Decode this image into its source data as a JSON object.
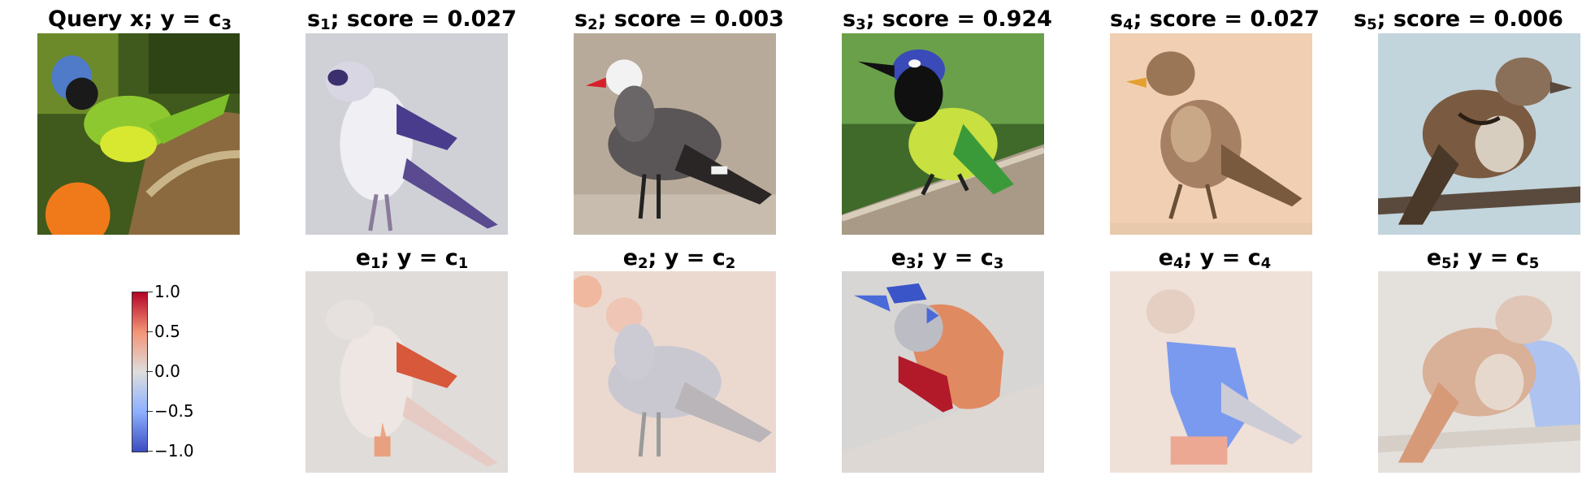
{
  "query_title": {
    "text": "Query x; y",
    "op": " = ",
    "var": "c",
    "sub": "3"
  },
  "samples": [
    {
      "name": "s",
      "sub": "1",
      "score_text": "; score = 0.027"
    },
    {
      "name": "s",
      "sub": "2",
      "score_text": "; score = 0.003"
    },
    {
      "name": "s",
      "sub": "3",
      "score_text": "; score = 0.924"
    },
    {
      "name": "s",
      "sub": "4",
      "score_text": "; score = 0.027"
    },
    {
      "name": "s",
      "sub": "5",
      "score_text": "; score = 0.006"
    }
  ],
  "explanations": [
    {
      "name": "e",
      "sub": "1",
      "mid": "; y = ",
      "var": "c",
      "varsub": "1"
    },
    {
      "name": "e",
      "sub": "2",
      "mid": "; y = ",
      "var": "c",
      "varsub": "2"
    },
    {
      "name": "e",
      "sub": "3",
      "mid": "; y = ",
      "var": "c",
      "varsub": "3"
    },
    {
      "name": "e",
      "sub": "4",
      "mid": "; y = ",
      "var": "c",
      "varsub": "4"
    },
    {
      "name": "e",
      "sub": "5",
      "mid": "; y = ",
      "var": "c",
      "varsub": "5"
    }
  ],
  "colorbar": {
    "colormap": "coolwarm",
    "colors": {
      "high": "#b40426",
      "mid": "#dddddd",
      "low": "#3b4cc0"
    },
    "ticks": [
      "1.0",
      "0.5",
      "0.0",
      "−0.5",
      "−1.0"
    ]
  }
}
